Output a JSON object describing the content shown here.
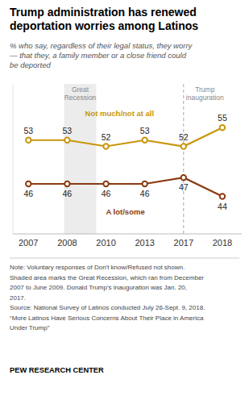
{
  "chart_data": {
    "type": "line",
    "title": "Trump administration has renewed\ndeportation worries among Latinos",
    "subtitle": "% who say, regardless of their legal status, they worry\n— that they, a family member or a close friend could\nbe deported",
    "categories": [
      "2007",
      "2008",
      "2010",
      "2013",
      "2017",
      "2018"
    ],
    "series": [
      {
        "name": "Not much/not at all",
        "color": "#c8960c",
        "marker": "circle",
        "line_style": "solid",
        "values": [
          53,
          53,
          52,
          53,
          52,
          55
        ]
      },
      {
        "name": "A lot/some",
        "color": "#8b3a0f",
        "marker": "circle",
        "line_style": "solid",
        "values": [
          46,
          46,
          46,
          46,
          47,
          44
        ]
      }
    ],
    "ylim": [
      38,
      62
    ],
    "data_labels": true,
    "tick_labels": "x",
    "grid": false,
    "annotations": [
      {
        "text": "Great\nRecession"
      },
      {
        "text": "Trump\ninauguration",
        "x": "2017"
      }
    ],
    "note": "Note: Voluntary responses of Don't know/Refused not shown.\nShaded area marks the Great Recession, which ran from December\n2007 to June 2009. Donald Trump’s inauguration was Jan. 20,\n2017.\nSource: National Survey of Latinos conducted July 26-Sept. 9, 2018.\n“More Latinos Have Serious Concerns About Their Place in America\nUnder Trump”",
    "source": "PEW RESEARCH CENTER"
  }
}
